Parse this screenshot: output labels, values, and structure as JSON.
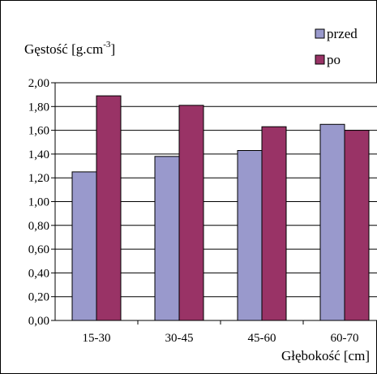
{
  "chart_data": {
    "type": "bar",
    "ylabel": "Gęstość [g.cm",
    "ylabel_superscript": "-3",
    "ylabel_close": "]",
    "xlabel": "Głębokość [cm]",
    "categories": [
      "15-30",
      "30-45",
      "45-60",
      "60-70"
    ],
    "series": [
      {
        "name": "przed",
        "values": [
          1.25,
          1.38,
          1.43,
          1.65
        ],
        "color": "#9999CC"
      },
      {
        "name": "po",
        "values": [
          1.89,
          1.81,
          1.63,
          1.6
        ],
        "color": "#993366"
      }
    ],
    "ylim": [
      0,
      2.0
    ],
    "yticks": [
      "0,00",
      "0,20",
      "0,40",
      "0,60",
      "0,80",
      "1,00",
      "1,20",
      "1,40",
      "1,60",
      "1,80",
      "2,00"
    ],
    "grid": true,
    "legend_position": "top-right"
  }
}
